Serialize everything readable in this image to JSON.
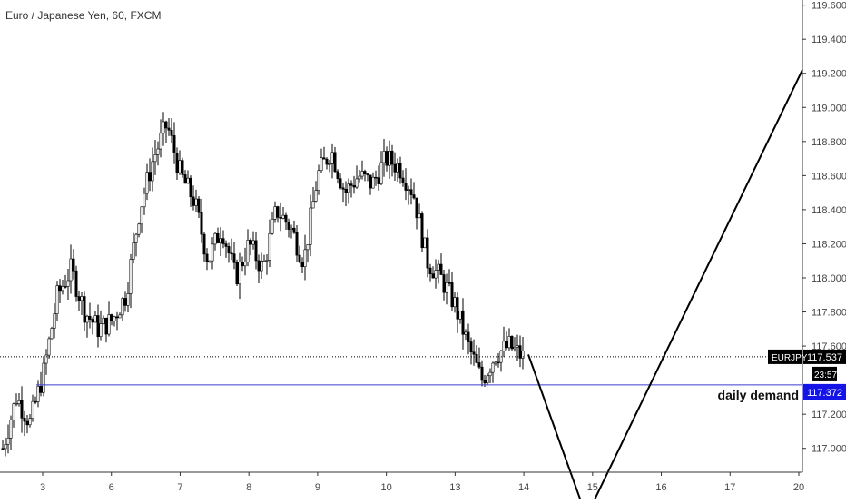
{
  "header": {
    "symbol_title": "Euro / Japanese Yen, 60, FXCM"
  },
  "colors": {
    "background": "#ffffff",
    "candle": "#000000",
    "price_line_dotted": "#000000",
    "demand_line": "#3b3bd1",
    "demand_badge": "#1414e6",
    "price_badge": "#000000",
    "axis": "#333333"
  },
  "chart_data": {
    "type": "candlestick",
    "y_axis": {
      "ticks": [
        "119.600",
        "119.400",
        "119.200",
        "119.000",
        "118.800",
        "118.600",
        "118.400",
        "118.200",
        "118.000",
        "117.800",
        "117.600",
        "117.200",
        "117.000"
      ],
      "ylim": [
        116.86,
        119.63
      ]
    },
    "x_axis": {
      "ticks": [
        "3",
        "6",
        "7",
        "8",
        "9",
        "10",
        "13",
        "14",
        "15",
        "16",
        "17",
        "20"
      ]
    },
    "last_price": {
      "symbol": "EURJPY",
      "value": "117.537",
      "countdown": "23:57"
    },
    "demand_zone": {
      "label": "daily demand",
      "value": "117.372"
    },
    "projection_path": [
      117.55,
      116.6,
      119.22
    ],
    "anchors": [
      117.0,
      117.3,
      117.15,
      117.45,
      117.9,
      118.05,
      117.8,
      117.7,
      117.75,
      117.9,
      118.4,
      118.7,
      118.9,
      118.6,
      118.45,
      118.1,
      118.3,
      118.0,
      118.2,
      118.05,
      118.4,
      118.3,
      118.1,
      118.6,
      118.75,
      118.5,
      118.6,
      118.55,
      118.7,
      118.65,
      118.5,
      118.1,
      118.0,
      117.85,
      117.6,
      117.4,
      117.55,
      117.6,
      117.537
    ]
  }
}
